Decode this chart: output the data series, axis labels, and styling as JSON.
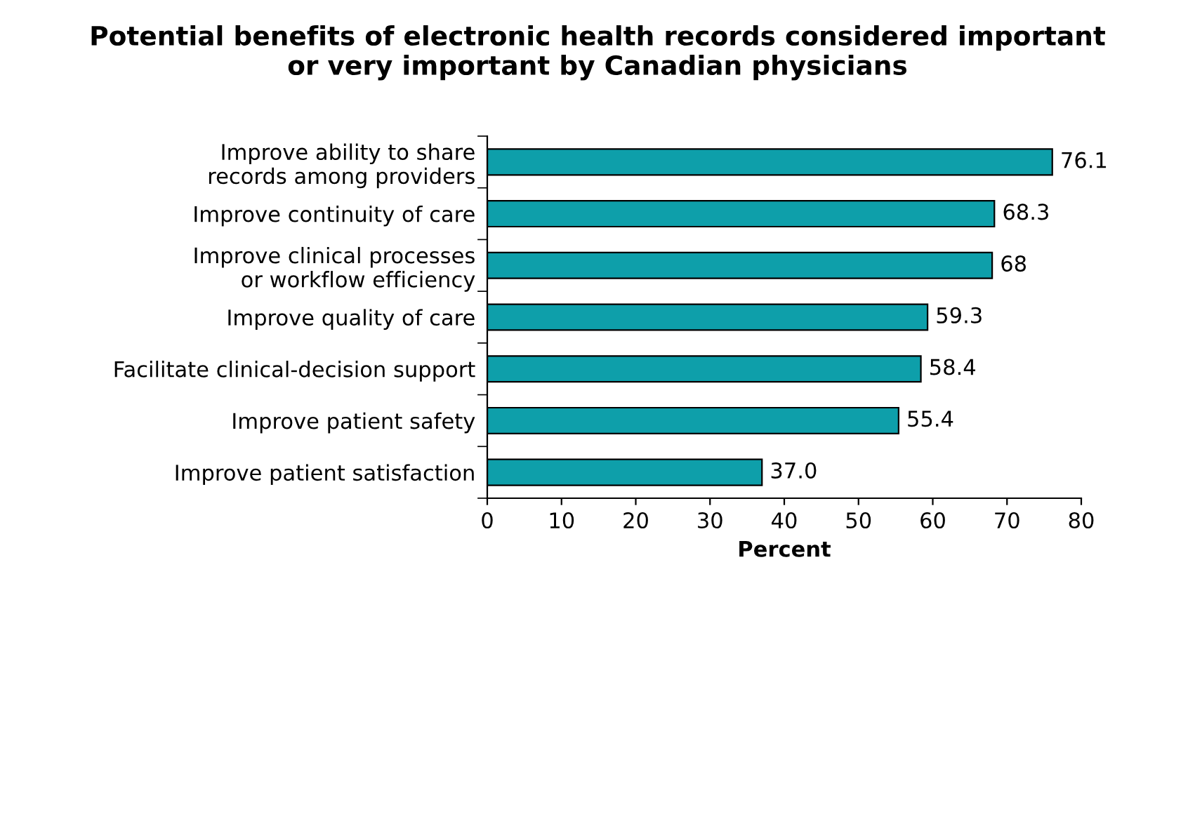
{
  "chart_data": {
    "type": "bar",
    "orientation": "horizontal",
    "title": "Potential benefits of electronic health records considered important\nor very important by Canadian physicians",
    "xlabel": "Percent",
    "categories": [
      "Improve ability to share\nrecords among providers",
      "Improve continuity of care",
      "Improve clinical processes\nor workflow efficiency",
      "Improve quality of care",
      "Facilitate clinical-decision support",
      "Improve patient safety",
      "Improve patient satisfaction"
    ],
    "values": [
      76.1,
      68.3,
      68,
      59.3,
      58.4,
      55.4,
      37.0
    ],
    "value_labels": [
      "76.1",
      "68.3",
      "68",
      "59.3",
      "58.4",
      "55.4",
      "37.0"
    ],
    "color": "#0e9faa",
    "xlim": [
      0,
      80
    ],
    "xticks": [
      0,
      10,
      20,
      30,
      40,
      50,
      60,
      70,
      80
    ],
    "grid": false
  }
}
